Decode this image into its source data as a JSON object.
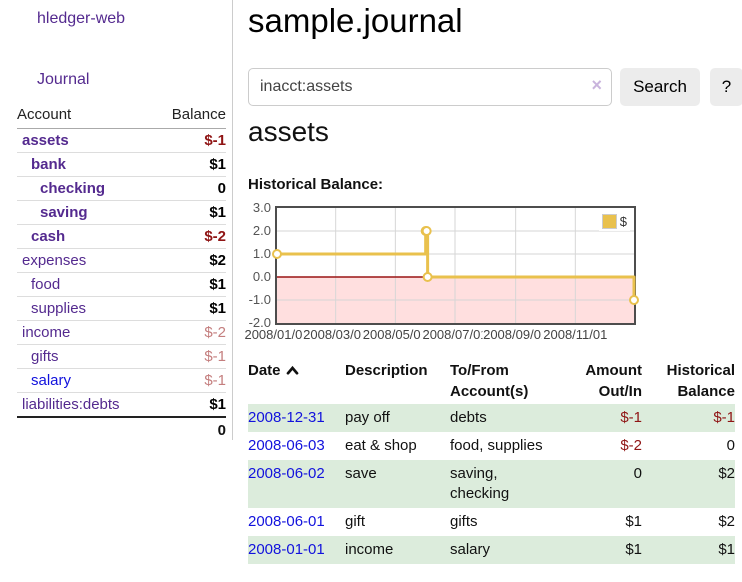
{
  "colors": {
    "accent_purple": "#542a8f",
    "link_blue": "#1212dd",
    "negative_strong": "#8f1414",
    "negative_soft": "#c47e7e",
    "row_green": "#dcecdc",
    "chart_gold": "#e9c14d",
    "chart_pink": "#ffdfdf",
    "chart_zero_line": "#9a1414",
    "chart_grid": "#d6d6d6"
  },
  "app": {
    "title": "hledger-web"
  },
  "sidebar": {
    "nav_journal": "Journal",
    "accounts": {
      "headers": {
        "account": "Account",
        "balance": "Balance"
      },
      "rows": [
        {
          "name": "assets",
          "depth": 0,
          "balance": "$-1",
          "bold": true,
          "negative": "strong"
        },
        {
          "name": "bank",
          "depth": 1,
          "balance": "$1",
          "bold": true,
          "negative": "none"
        },
        {
          "name": "checking",
          "depth": 2,
          "balance": "0",
          "bold": true,
          "negative": "none"
        },
        {
          "name": "saving",
          "depth": 2,
          "balance": "$1",
          "bold": true,
          "negative": "none"
        },
        {
          "name": "cash",
          "depth": 1,
          "balance": "$-2",
          "bold": true,
          "negative": "strong"
        },
        {
          "name": "expenses",
          "depth": 0,
          "balance": "$2",
          "bold": false,
          "negative": "none"
        },
        {
          "name": "food",
          "depth": 1,
          "balance": "$1",
          "bold": false,
          "negative": "none"
        },
        {
          "name": "supplies",
          "depth": 1,
          "balance": "$1",
          "bold": false,
          "negative": "none"
        },
        {
          "name": "income",
          "depth": 0,
          "balance": "$-2",
          "bold": false,
          "negative": "soft"
        },
        {
          "name": "gifts",
          "depth": 1,
          "balance": "$-1",
          "bold": false,
          "negative": "soft"
        },
        {
          "name": "salary",
          "depth": 1,
          "balance": "$-1",
          "bold": false,
          "negative": "soft",
          "link_color": "blue"
        },
        {
          "name": "liabilities:debts",
          "depth": 0,
          "balance": "$1",
          "bold": false,
          "negative": "none"
        }
      ],
      "total": "0"
    }
  },
  "main": {
    "title": "sample.journal",
    "search": {
      "value": "inacct:assets",
      "clear_icon": "×",
      "button": "Search",
      "help_button": "?"
    },
    "account_heading": "assets",
    "chart_label": "Historical Balance:"
  },
  "chart_data": {
    "type": "line",
    "style": "step-after",
    "title": "Historical Balance:",
    "x_start": "2008-01-01",
    "x_range_days": 365,
    "ylim": [
      -2,
      3
    ],
    "y_ticks": [
      "3.0",
      "2.0",
      "1.0",
      "0.0",
      "-1.0",
      "-2.0"
    ],
    "x_ticks": [
      {
        "day": 0,
        "label": "2008/01/01"
      },
      {
        "day": 60,
        "label": "2008/03/01"
      },
      {
        "day": 121,
        "label": "2008/05/01"
      },
      {
        "day": 182,
        "label": "2008/07/01"
      },
      {
        "day": 244,
        "label": "2008/09/01"
      },
      {
        "day": 305,
        "label": "2008/11/01"
      }
    ],
    "series": [
      {
        "name": "$",
        "points": [
          {
            "date": "2008-01-01",
            "value": 1
          },
          {
            "date": "2008-06-01",
            "value": 2
          },
          {
            "date": "2008-06-02",
            "value": 2
          },
          {
            "date": "2008-06-03",
            "value": 0
          },
          {
            "date": "2008-12-31",
            "value": -1
          }
        ]
      }
    ],
    "legend": {
      "label": "$",
      "position": "top-right"
    },
    "negative_region_shaded": true,
    "grid": true
  },
  "register": {
    "headers": {
      "date": "Date",
      "description": "Description",
      "tofrom1": "To/From",
      "tofrom2": "Account(s)",
      "amount1": "Amount",
      "amount2": "Out/In",
      "hist1": "Historical",
      "hist2": "Balance"
    },
    "sort": "ascending",
    "rows": [
      {
        "date": "2008-12-31",
        "description": "pay off",
        "accounts": "debts",
        "amount": "$-1",
        "balance": "$-1"
      },
      {
        "date": "2008-06-03",
        "description": "eat & shop",
        "accounts": "food, supplies",
        "amount": "$-2",
        "balance": "0"
      },
      {
        "date": "2008-06-02",
        "description": "save",
        "accounts": "saving, checking",
        "amount": "0",
        "balance": "$2"
      },
      {
        "date": "2008-06-01",
        "description": "gift",
        "accounts": "gifts",
        "amount": "$1",
        "balance": "$2"
      },
      {
        "date": "2008-01-01",
        "description": "income",
        "accounts": "salary",
        "amount": "$1",
        "balance": "$1"
      }
    ]
  }
}
